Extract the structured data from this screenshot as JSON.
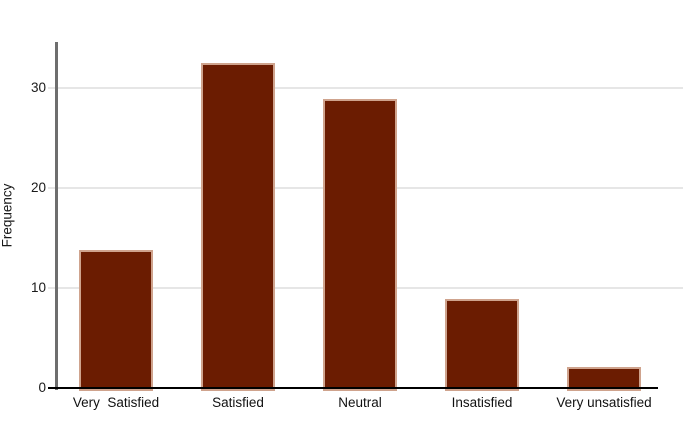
{
  "chart_data": {
    "type": "bar",
    "title": "",
    "xlabel": "",
    "ylabel": "Frequency",
    "categories": [
      "Very  Satisfied",
      "Satisfied",
      "Neutral",
      "Insatisfied",
      "Very unsatisfied"
    ],
    "values": [
      13.8,
      32.5,
      28.9,
      8.9,
      2.1
    ],
    "yticks": [
      0,
      10,
      20,
      30
    ],
    "ytick_labels": [
      "0",
      "10",
      "20",
      "30"
    ],
    "ylim": [
      0,
      34.6
    ],
    "grid": true,
    "legend": "none",
    "colors": {
      "bar_fill": "#6b1c01",
      "bar_stroke": "#cfa38d",
      "gridline": "#e6e6e6",
      "y_axis_line": "#6e6e6e",
      "baseline": "#000000",
      "tick_text": "#1a1a1a"
    }
  }
}
